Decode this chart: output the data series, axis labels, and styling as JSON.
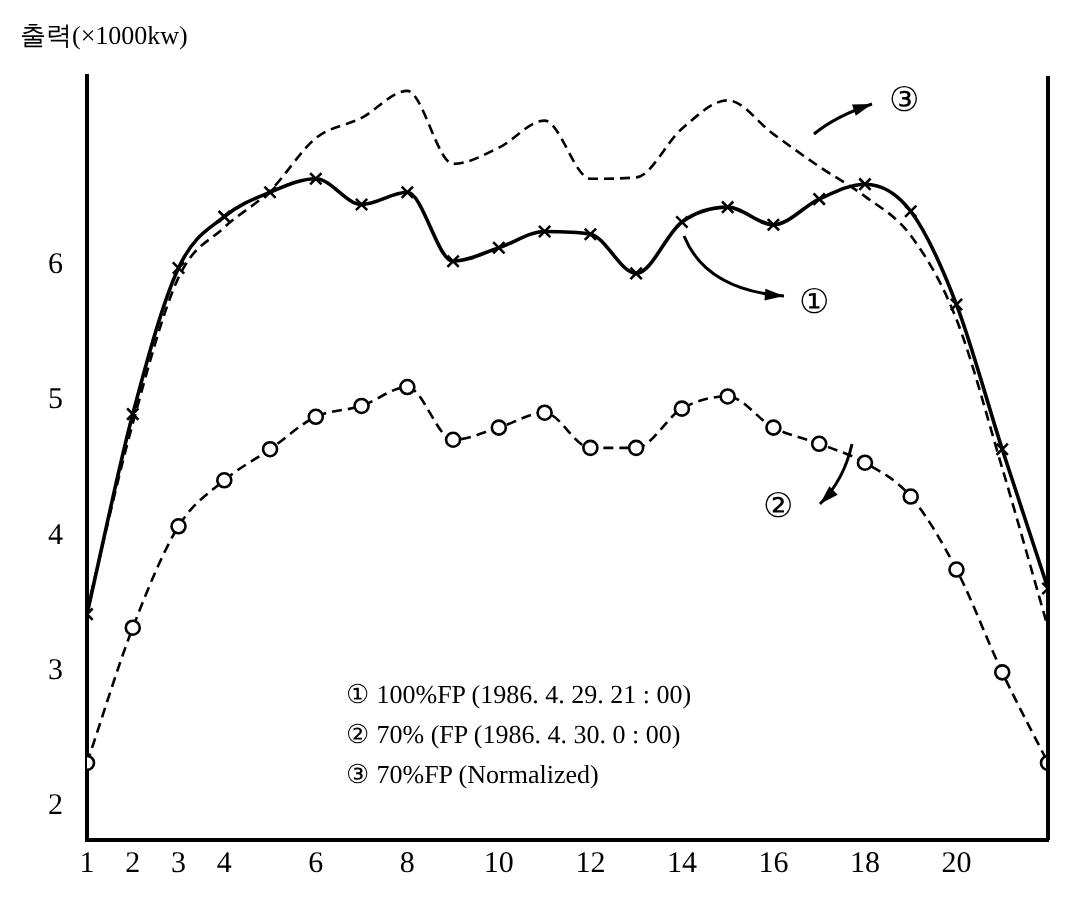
{
  "chart_data": {
    "type": "line",
    "ylabel": "출력(×1000kw)",
    "x": [
      1,
      2,
      3,
      4,
      5,
      6,
      7,
      8,
      9,
      10,
      11,
      12,
      13,
      14,
      15,
      16,
      17,
      18,
      19,
      20,
      21,
      22
    ],
    "series": [
      {
        "color": "#000000",
        "marker": "cross",
        "line_style": "solid",
        "values": [
          3.42,
          4.9,
          5.98,
          6.36,
          6.54,
          6.64,
          6.45,
          6.54,
          6.03,
          6.13,
          6.25,
          6.23,
          5.94,
          6.32,
          6.43,
          6.3,
          6.49,
          6.6,
          6.4,
          5.71,
          4.64,
          3.61
        ]
      },
      {
        "color": "#000000",
        "marker": "circle",
        "line_style": "dashed",
        "values": [
          2.32,
          3.32,
          4.07,
          4.41,
          4.64,
          4.88,
          4.96,
          5.1,
          4.71,
          4.8,
          4.91,
          4.65,
          4.65,
          4.94,
          5.03,
          4.8,
          4.68,
          4.54,
          4.29,
          3.75,
          2.99,
          2.32
        ]
      },
      {
        "color": "#000000",
        "marker": "none",
        "line_style": "dashed",
        "values": [
          3.45,
          4.83,
          5.91,
          6.28,
          6.55,
          6.94,
          7.09,
          7.29,
          6.75,
          6.87,
          7.07,
          6.64,
          6.65,
          7.01,
          7.22,
          6.97,
          6.73,
          6.51,
          6.22,
          5.6,
          4.5,
          3.32
        ]
      }
    ],
    "xlim": [
      1,
      22
    ],
    "xticks": [
      1,
      2,
      3,
      4,
      6,
      8,
      10,
      12,
      14,
      16,
      18,
      20
    ],
    "ylim": [
      1.75,
      7.4
    ],
    "yticks": [
      2,
      3,
      4,
      5,
      6
    ],
    "grid": false,
    "legend": false,
    "annotations": [
      "①",
      "②",
      "③",
      "① 100%FP (1986. 4. 29. 21 : 00)",
      "② 70% (FP (1986. 4. 30. 0 : 00)",
      "③ 70%FP (Normalized)"
    ]
  }
}
